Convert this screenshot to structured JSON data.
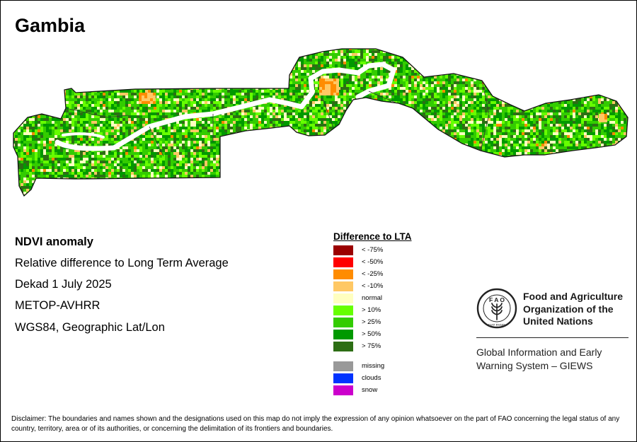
{
  "map": {
    "title": "Gambia",
    "colors": {
      "land": "#33b82c",
      "river": "#ffffff",
      "border": "#111111"
    }
  },
  "info": {
    "title": "NDVI anomaly",
    "lines": [
      "Relative difference to Long Term Average",
      "Dekad 1 July 2025",
      "METOP-AVHRR",
      "WGS84, Geographic Lat/Lon"
    ]
  },
  "legend": {
    "title": "Difference to LTA",
    "items": [
      {
        "label": "< -75%",
        "color": "#9b0000"
      },
      {
        "label": "< -50%",
        "color": "#ff0000"
      },
      {
        "label": "< -25%",
        "color": "#ff8c00"
      },
      {
        "label": "< -10%",
        "color": "#ffc864"
      },
      {
        "label": "normal",
        "color": "#ffffc0"
      },
      {
        "label": "> 10%",
        "color": "#66ff00"
      },
      {
        "label": "> 25%",
        "color": "#33cc00"
      },
      {
        "label": "> 50%",
        "color": "#009900"
      },
      {
        "label": "> 75%",
        "color": "#2d6e14"
      },
      {
        "label": "missing",
        "color": "#999999"
      },
      {
        "label": "clouds",
        "color": "#0033ff"
      },
      {
        "label": "snow",
        "color": "#cc00cc"
      }
    ]
  },
  "organization": {
    "logo_text": "FAO · FIAT PANIS",
    "name_lines": [
      "Food and Agriculture",
      "Organization of the",
      "United Nations"
    ],
    "system_lines": [
      "Global Information and Early",
      "Warning System – GIEWS"
    ]
  },
  "disclaimer": "Disclaimer: The boundaries and names shown and the designations used on this map do not imply the expression of any opinion whatsoever on the part of FAO concerning the legal status of any country, territory, area or of its authorities, or concerning the delimitation of its frontiers and boundaries."
}
